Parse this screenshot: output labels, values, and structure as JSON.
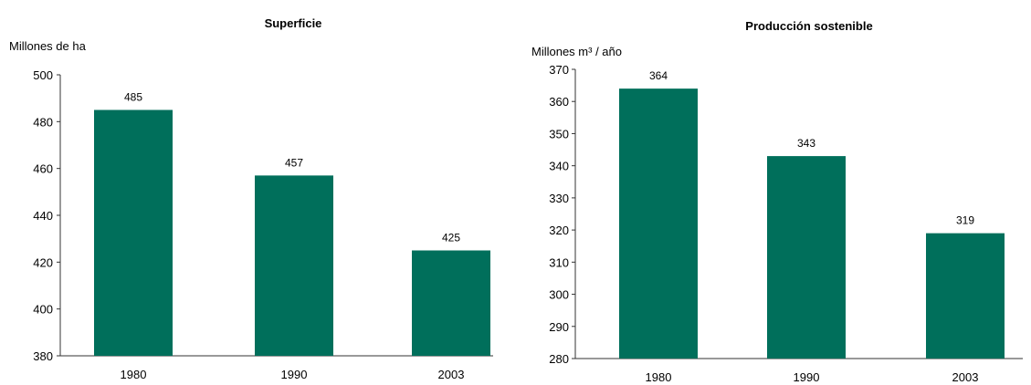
{
  "chart_data": [
    {
      "type": "bar",
      "title": "Superficie",
      "ylabel": "Millones de ha",
      "categories": [
        "1980",
        "1990",
        "2003"
      ],
      "values": [
        485,
        457,
        425
      ],
      "ylim": [
        380,
        500
      ],
      "yticks": [
        380,
        400,
        420,
        440,
        460,
        480,
        500
      ],
      "color": "#006f5b"
    },
    {
      "type": "bar",
      "title": "Producción sostenible",
      "ylabel": "Millones m³ / año",
      "categories": [
        "1980",
        "1990",
        "2003"
      ],
      "values": [
        364,
        343,
        319
      ],
      "ylim": [
        280,
        370
      ],
      "yticks": [
        280,
        290,
        300,
        310,
        320,
        330,
        340,
        350,
        360,
        370
      ],
      "color": "#006f5b"
    }
  ]
}
